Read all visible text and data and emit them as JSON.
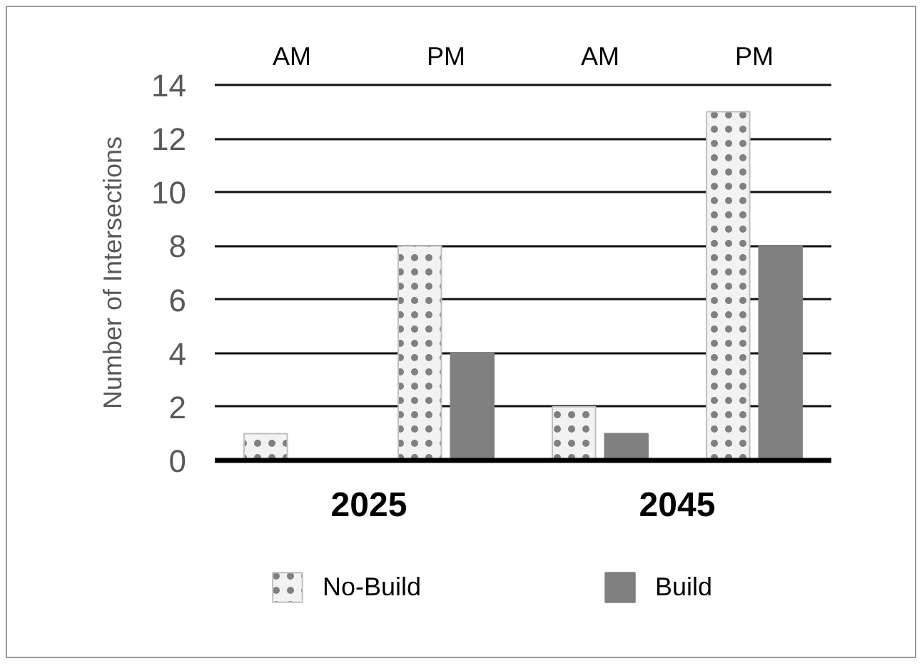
{
  "chart_data": {
    "type": "bar",
    "categories": [
      "AM",
      "PM",
      "AM",
      "PM"
    ],
    "ylabel": "Number of Intersections",
    "annotations": [
      "2025",
      "2045"
    ],
    "series": [
      {
        "name": "No-Build",
        "color": "#f2f2f2",
        "values": [
          1,
          8,
          2,
          13
        ]
      },
      {
        "name": "Build",
        "color": "#808080",
        "values": [
          0,
          4,
          1,
          8
        ]
      }
    ],
    "ylim": [
      0,
      14
    ],
    "yticks": [
      0,
      2,
      4,
      6,
      8,
      10,
      12,
      14
    ],
    "grid": "y",
    "legend": "bottom"
  }
}
